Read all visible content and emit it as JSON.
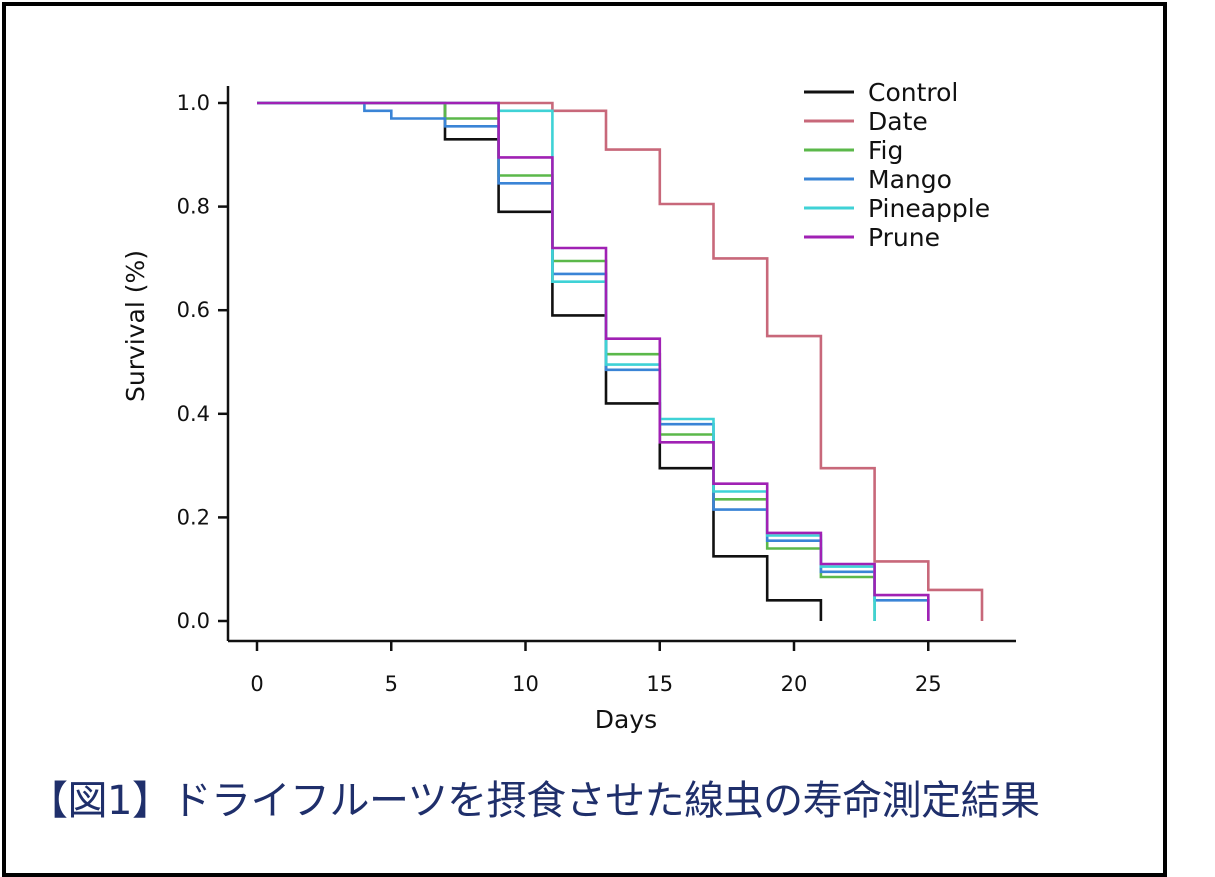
{
  "caption": "【図1】ドライフルーツを摂食させた線虫の寿命測定結果",
  "chart_data": {
    "type": "line",
    "step": true,
    "xlabel": "Days",
    "ylabel": "Survival (%)",
    "xlim": [
      0,
      27
    ],
    "ylim": [
      0.0,
      1.0
    ],
    "x_ticks": [
      0,
      5,
      10,
      15,
      20,
      25
    ],
    "y_ticks": [
      "0.0",
      "0.2",
      "0.4",
      "0.6",
      "0.8",
      "1.0"
    ],
    "grid": false,
    "legend_position": "top-right",
    "series": [
      {
        "name": "Control",
        "color": "#111111",
        "x": [
          0,
          7,
          9,
          11,
          13,
          15,
          17,
          19,
          21,
          21
        ],
        "y": [
          1.0,
          0.93,
          0.79,
          0.59,
          0.42,
          0.295,
          0.125,
          0.04,
          0.0,
          0.0
        ]
      },
      {
        "name": "Date",
        "color": "#c8687a",
        "x": [
          0,
          11,
          13,
          15,
          17,
          19,
          21,
          23,
          25,
          27,
          27
        ],
        "y": [
          1.0,
          0.985,
          0.91,
          0.805,
          0.7,
          0.55,
          0.295,
          0.115,
          0.06,
          0.04,
          0.0
        ]
      },
      {
        "name": "Fig",
        "color": "#5bb84a",
        "x": [
          0,
          7,
          9,
          11,
          13,
          15,
          17,
          19,
          21,
          23,
          23
        ],
        "y": [
          1.0,
          0.97,
          0.86,
          0.695,
          0.515,
          0.36,
          0.235,
          0.14,
          0.085,
          0.0,
          0.0
        ]
      },
      {
        "name": "Mango",
        "color": "#3a84d6",
        "x": [
          0,
          4,
          5,
          7,
          9,
          11,
          13,
          15,
          17,
          19,
          21,
          23,
          25,
          25
        ],
        "y": [
          1.0,
          0.985,
          0.97,
          0.955,
          0.845,
          0.67,
          0.485,
          0.38,
          0.215,
          0.155,
          0.095,
          0.04,
          0.0,
          0.0
        ]
      },
      {
        "name": "Pineapple",
        "color": "#3fd2d6",
        "x": [
          0,
          9,
          11,
          13,
          15,
          17,
          19,
          21,
          23,
          23
        ],
        "y": [
          1.0,
          0.985,
          0.655,
          0.495,
          0.39,
          0.25,
          0.165,
          0.105,
          0.045,
          0.0
        ]
      },
      {
        "name": "Prune",
        "color": "#a021b4",
        "x": [
          0,
          9,
          11,
          13,
          15,
          17,
          19,
          21,
          23,
          25,
          25
        ],
        "y": [
          1.0,
          0.895,
          0.72,
          0.545,
          0.345,
          0.265,
          0.17,
          0.11,
          0.05,
          0.0,
          0.0
        ]
      }
    ]
  }
}
